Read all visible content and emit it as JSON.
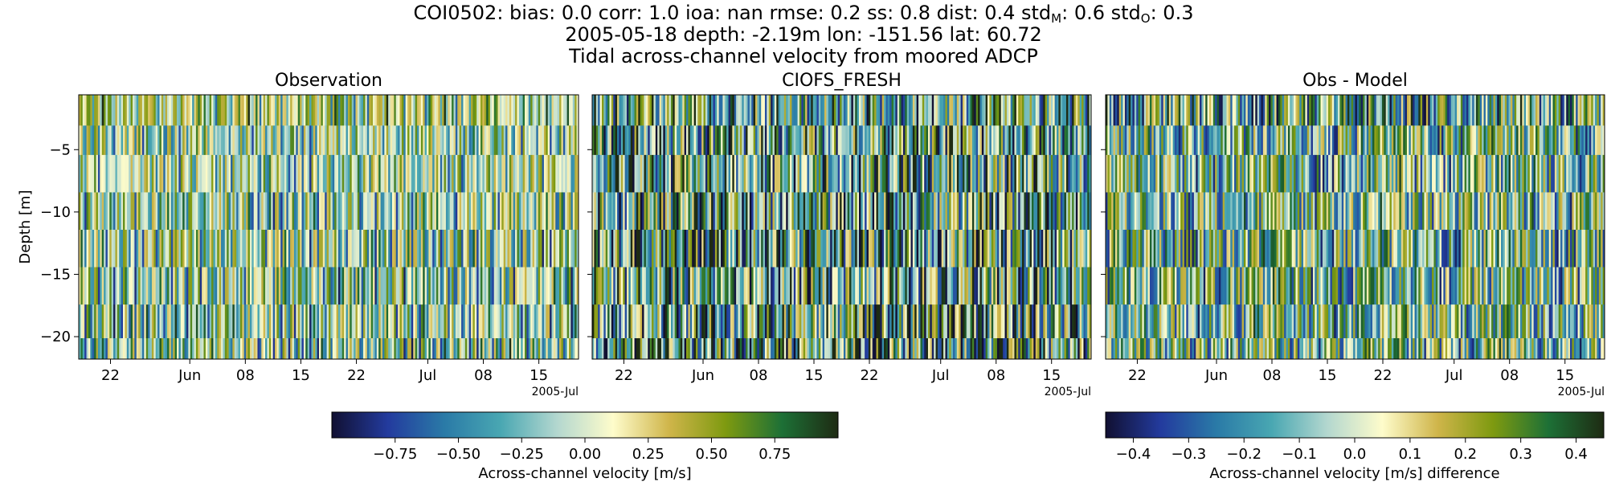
{
  "figure": {
    "title_station": "COI0502:",
    "metrics": [
      {
        "name": "bias",
        "sub": "",
        "value": "0.0"
      },
      {
        "name": "corr",
        "sub": "",
        "value": "1.0"
      },
      {
        "name": "ioa",
        "sub": "",
        "value": "nan"
      },
      {
        "name": "rmse",
        "sub": "",
        "value": "0.2"
      },
      {
        "name": "ss",
        "sub": "",
        "value": "0.8"
      },
      {
        "name": "dist",
        "sub": "",
        "value": "0.4"
      },
      {
        "name": "std",
        "sub": "M",
        "value": "0.6"
      },
      {
        "name": "std",
        "sub": "O",
        "value": "0.3"
      }
    ],
    "subtitle": "2005-05-18 depth: -2.19m lon: -151.56 lat: 60.72",
    "description": "Tidal across-channel velocity from moored ADCP"
  },
  "chart_data": [
    {
      "type": "heatmap",
      "title": "Observation",
      "ylabel": "Depth [m]",
      "xlabel": "",
      "x_range": [
        "2005-05-18",
        "2005-07-20"
      ],
      "x_ticks": [
        "22",
        "Jun",
        "08",
        "15",
        "22",
        "Jul",
        "08",
        "15"
      ],
      "x_offset_label": "2005-Jul",
      "ylim": [
        -21.8,
        -0.6
      ],
      "y_ticks": [
        -5,
        -10,
        -15,
        -20
      ],
      "y_tick_labels": [
        "−5",
        "−10",
        "−15",
        "−20"
      ],
      "depth_bins": [
        -21.3,
        -18.9,
        -15.9,
        -12.9,
        -9.9,
        -6.9,
        -3.9,
        -2.19
      ],
      "colormap": "delta",
      "vmin": -1.0,
      "vmax": 1.0,
      "pattern": "tidal oscillation, semidiurnal"
    },
    {
      "type": "heatmap",
      "title": "CIOFS_FRESH",
      "ylabel": "",
      "xlabel": "",
      "x_range": [
        "2005-05-18",
        "2005-07-20"
      ],
      "x_ticks": [
        "22",
        "Jun",
        "08",
        "15",
        "22",
        "Jul",
        "08",
        "15"
      ],
      "x_offset_label": "2005-Jul",
      "ylim": [
        -21.8,
        -0.6
      ],
      "colormap": "delta",
      "vmin": -1.0,
      "vmax": 1.0,
      "pattern": "tidal oscillation, semidiurnal"
    },
    {
      "type": "heatmap",
      "title": "Obs - Model",
      "ylabel": "",
      "xlabel": "",
      "x_range": [
        "2005-05-18",
        "2005-07-20"
      ],
      "x_ticks": [
        "22",
        "Jun",
        "08",
        "15",
        "22",
        "Jul",
        "08",
        "15"
      ],
      "x_offset_label": "2005-Jul",
      "ylim": [
        -21.8,
        -0.6
      ],
      "colormap": "delta",
      "vmin": -0.45,
      "vmax": 0.45,
      "pattern": "difference, mixed"
    }
  ],
  "colorbars": [
    {
      "label": "Across-channel velocity [m/s]",
      "min": -1.0,
      "max": 1.0,
      "ticks": [
        -0.75,
        -0.5,
        -0.25,
        0.0,
        0.25,
        0.5,
        0.75
      ],
      "tick_labels": [
        "−0.75",
        "−0.50",
        "−0.25",
        "0.00",
        "0.25",
        "0.50",
        "0.75"
      ]
    },
    {
      "label": "Across-channel velocity [m/s] difference",
      "min": -0.45,
      "max": 0.45,
      "ticks": [
        -0.4,
        -0.3,
        -0.2,
        -0.1,
        0.0,
        0.1,
        0.2,
        0.3,
        0.4
      ],
      "tick_labels": [
        "−0.4",
        "−0.3",
        "−0.2",
        "−0.1",
        "0.0",
        "0.1",
        "0.2",
        "0.3",
        "0.4"
      ]
    }
  ],
  "colormap_stops": [
    "#111032",
    "#233b9e",
    "#2a7aa7",
    "#49a7b2",
    "#b3d7cf",
    "#fefccb",
    "#cfb54a",
    "#7e9a10",
    "#1d7036",
    "#1e2b13"
  ]
}
